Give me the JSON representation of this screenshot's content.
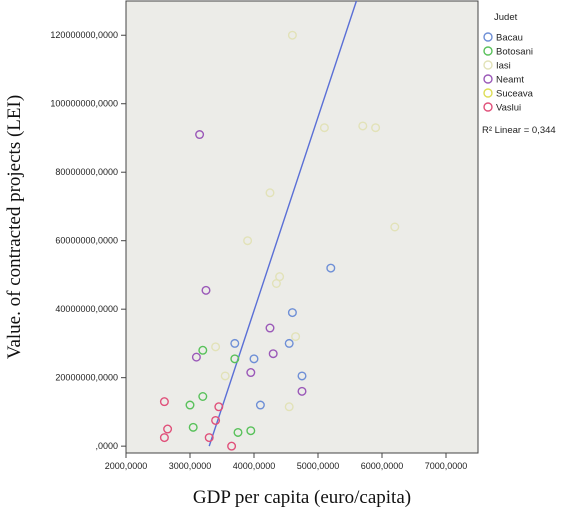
{
  "chart_data": {
    "type": "scatter",
    "xlabel": "GDP per capita (euro/capita)",
    "ylabel": "Value. of contracted projects (LEI)",
    "xlim": [
      2000000,
      7500000
    ],
    "ylim": [
      -2000000,
      130000000
    ],
    "x_ticks": [
      2000000,
      3000000,
      4000000,
      5000000,
      6000000,
      7000000
    ],
    "x_tick_labels": [
      "2000,0000",
      "3000,0000",
      "4000,0000",
      "5000,0000",
      "6000,0000",
      "7000,0000"
    ],
    "y_ticks": [
      0,
      20000000,
      40000000,
      60000000,
      80000000,
      100000000,
      120000000
    ],
    "y_tick_labels": [
      ",0000",
      "20000000,0000",
      "40000000,0000",
      "60000000,0000",
      "80000000,0000",
      "100000000,0000",
      "120000000,0000"
    ],
    "plot_background": "#ecece8",
    "legend": {
      "title": "Judet",
      "placement": "right",
      "r2_label": "R² Linear = 0,344"
    },
    "series": [
      {
        "name": "Bacau",
        "color": "#6e8fd6",
        "points": [
          [
            3700000,
            30000000
          ],
          [
            4000000,
            25500000
          ],
          [
            4100000,
            12000000
          ],
          [
            4600000,
            39000000
          ],
          [
            4550000,
            30000000
          ],
          [
            5200000,
            52000000
          ],
          [
            4750000,
            20500000
          ]
        ]
      },
      {
        "name": "Botosani",
        "color": "#58c15a",
        "points": [
          [
            3200000,
            28000000
          ],
          [
            3700000,
            25500000
          ],
          [
            3200000,
            14500000
          ],
          [
            3000000,
            12000000
          ],
          [
            3050000,
            5500000
          ],
          [
            3750000,
            4000000
          ],
          [
            3950000,
            4500000
          ]
        ]
      },
      {
        "name": "Iasi",
        "color": "#e2e2b8",
        "points": [
          [
            4600000,
            120000000
          ],
          [
            5100000,
            93000000
          ],
          [
            5700000,
            93500000
          ],
          [
            5900000,
            93000000
          ],
          [
            6200000,
            64000000
          ],
          [
            4250000,
            74000000
          ],
          [
            3900000,
            60000000
          ],
          [
            4400000,
            49500000
          ],
          [
            4350000,
            47500000
          ],
          [
            3400000,
            29000000
          ],
          [
            3550000,
            20500000
          ],
          [
            4650000,
            32000000
          ],
          [
            4550000,
            11500000
          ]
        ]
      },
      {
        "name": "Neamt",
        "color": "#9a58b8",
        "points": [
          [
            3150000,
            91000000
          ],
          [
            3250000,
            45500000
          ],
          [
            3100000,
            26000000
          ],
          [
            4250000,
            34500000
          ],
          [
            4300000,
            27000000
          ],
          [
            3950000,
            21500000
          ],
          [
            4750000,
            16000000
          ]
        ]
      },
      {
        "name": "Suceava",
        "color": "#dddd55",
        "points": []
      },
      {
        "name": "Vaslui",
        "color": "#e0507a",
        "points": [
          [
            2600000,
            13000000
          ],
          [
            2650000,
            5000000
          ],
          [
            2600000,
            2500000
          ],
          [
            3450000,
            11500000
          ],
          [
            3400000,
            7500000
          ],
          [
            3300000,
            2500000
          ],
          [
            3650000,
            0
          ]
        ]
      }
    ],
    "fit_line": {
      "color": "#5a6fd6",
      "points": [
        [
          3300000,
          0
        ],
        [
          5600000,
          130000000
        ]
      ]
    }
  }
}
